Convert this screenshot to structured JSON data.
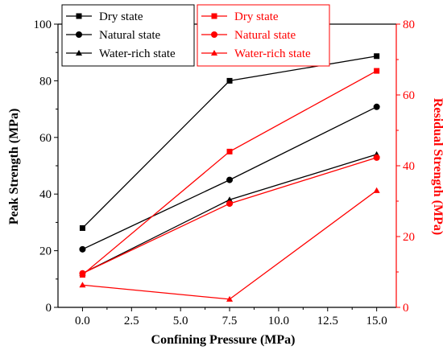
{
  "chart_data": {
    "type": "line",
    "title": "",
    "xlabel": "Confining Pressure (MPa)",
    "ylabel": "Peak Strength (MPa)",
    "y2label": "Residual Strength (MPa)",
    "x": [
      0.0,
      7.5,
      15.0
    ],
    "xticks": [
      "0.0",
      "2.5",
      "5.0",
      "7.5",
      "10.0",
      "12.5",
      "15.0"
    ],
    "xtick_values": [
      0,
      2.5,
      5,
      7.5,
      10,
      12.5,
      15
    ],
    "xlim": [
      -1.25,
      16.0
    ],
    "ylim": [
      0,
      100
    ],
    "yticks": [
      "0",
      "20",
      "40",
      "60",
      "80",
      "100"
    ],
    "ytick_values": [
      0,
      20,
      40,
      60,
      80,
      100
    ],
    "y2lim": [
      0,
      80
    ],
    "y2ticks": [
      "0",
      "20",
      "40",
      "60",
      "80"
    ],
    "y2tick_values": [
      0,
      20,
      40,
      60,
      80
    ],
    "grid": false,
    "colors": {
      "left": "#000000",
      "right": "#ff0000"
    },
    "series": [
      {
        "name": "Dry state",
        "axis": "left",
        "marker": "square",
        "color": "#000000",
        "values": [
          28,
          80,
          88.7
        ]
      },
      {
        "name": "Natural state",
        "axis": "left",
        "marker": "circle",
        "color": "#000000",
        "values": [
          20.5,
          45,
          70.8
        ]
      },
      {
        "name": "Water-rich state",
        "axis": "left",
        "marker": "triangle",
        "color": "#000000",
        "values": [
          12,
          38,
          54
        ]
      },
      {
        "name": "Dry state",
        "axis": "right",
        "marker": "square",
        "color": "#ff0000",
        "values": [
          9.2,
          44,
          66.8
        ]
      },
      {
        "name": "Natural state",
        "axis": "right",
        "marker": "circle",
        "color": "#ff0000",
        "values": [
          9.6,
          29.3,
          42.3
        ]
      },
      {
        "name": "Water-rich state",
        "axis": "right",
        "marker": "triangle",
        "color": "#ff0000",
        "values": [
          6.3,
          2.3,
          33
        ]
      }
    ],
    "legends": [
      {
        "position": "top-left",
        "color": "#000000",
        "entries": [
          "Dry state",
          "Natural state",
          "Water-rich state"
        ]
      },
      {
        "position": "top-right",
        "color": "#ff0000",
        "entries": [
          "Dry state",
          "Natural state",
          "Water-rich state"
        ]
      }
    ]
  }
}
